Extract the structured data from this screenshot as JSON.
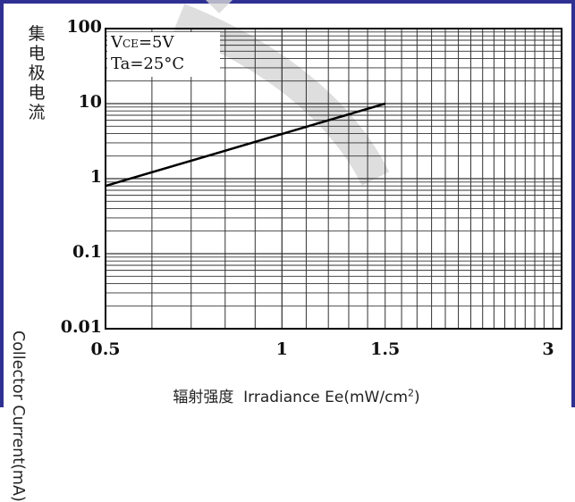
{
  "chart_data": {
    "type": "line",
    "x_scale": "log",
    "y_scale": "log",
    "xlim": [
      0.5,
      3
    ],
    "ylim": [
      0.01,
      100
    ],
    "x_ticks": [
      "0.5",
      "1",
      "1.5",
      "3"
    ],
    "y_ticks": [
      "100",
      "10",
      "1",
      "0.1",
      "0.01"
    ],
    "grid": true,
    "ylabel_cn": "集电极电流",
    "ylabel_en": "Collector Current(mA)",
    "xlabel_cn": "辐射强度",
    "xlabel_en": "Irradiance Ee(mW/cm",
    "xlabel_sup": "2",
    "xlabel_end": ")",
    "annotation": {
      "vce_v": "V",
      "vce_sub": "CE",
      "vce_rest": "=5V",
      "ta": "Ta=25°C"
    },
    "series": [
      {
        "x": [
          0.5,
          1.5
        ],
        "y": [
          0.8,
          10
        ]
      }
    ],
    "colors": {
      "frame": "#2f3192",
      "line": "#000000",
      "grid": "#333333",
      "watermark": "#d0d0d0"
    }
  }
}
